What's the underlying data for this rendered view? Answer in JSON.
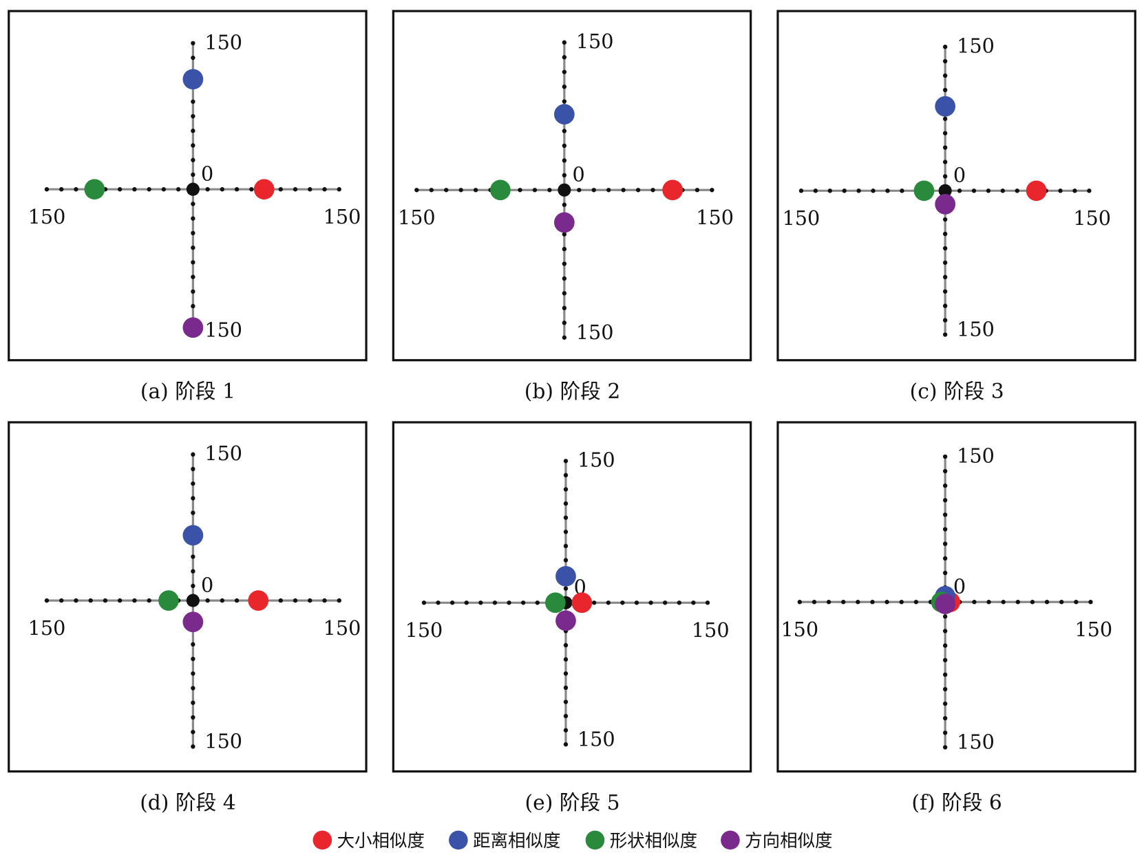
{
  "chart_data": {
    "type": "scatter",
    "axis_range": [
      -150,
      150
    ],
    "tick_step": 15,
    "axis_labels": {
      "top": "150",
      "bottom": "150",
      "left": "150",
      "right": "150",
      "origin": "0"
    },
    "series_legend": [
      {
        "key": "size",
        "name": "大小相似度",
        "color": "#e8262b",
        "axis": "x+"
      },
      {
        "key": "distance",
        "name": "距离相似度",
        "color": "#3a52a8",
        "axis": "y+"
      },
      {
        "key": "shape",
        "name": "形状相似度",
        "color": "#2a8a3c",
        "axis": "x-"
      },
      {
        "key": "direction",
        "name": "方向相似度",
        "color": "#7a2a8c",
        "axis": "y-"
      }
    ],
    "panels": [
      {
        "caption": "(a) 阶段 1",
        "size": 73,
        "distance": 113,
        "shape": -101,
        "direction": -142
      },
      {
        "caption": "(b) 阶段 2",
        "size": 110,
        "distance": 77,
        "shape": -65,
        "direction": -33
      },
      {
        "caption": "(c) 阶段 3",
        "size": 95,
        "distance": 88,
        "shape": -22,
        "direction": -14
      },
      {
        "caption": "(d) 阶段 4",
        "size": 67,
        "distance": 67,
        "shape": -25,
        "direction": -22
      },
      {
        "caption": "(e) 阶段 5",
        "size": 17,
        "distance": 28,
        "shape": -11,
        "direction": -19
      },
      {
        "caption": "(f) 阶段 6",
        "size": 5,
        "distance": 6,
        "shape": -4,
        "direction": -2
      }
    ]
  }
}
